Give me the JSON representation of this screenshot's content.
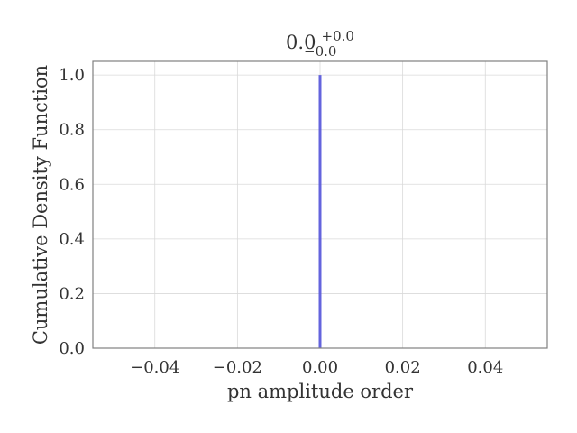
{
  "chart_data": {
    "type": "line",
    "title": {
      "base": "0.0",
      "sup": "+0.0",
      "sub": "−0.0"
    },
    "xlabel": "pn amplitude order",
    "ylabel": "Cumulative Density Function",
    "xlim": [
      -0.055,
      0.055
    ],
    "ylim": [
      0.0,
      1.05
    ],
    "x_ticks": [
      -0.04,
      -0.02,
      0.0,
      0.02,
      0.04
    ],
    "x_tick_labels": [
      "−0.04",
      "−0.02",
      "0.00",
      "0.02",
      "0.04"
    ],
    "y_ticks": [
      0.0,
      0.2,
      0.4,
      0.6,
      0.8,
      1.0
    ],
    "y_tick_labels": [
      "0.0",
      "0.2",
      "0.4",
      "0.6",
      "0.8",
      "1.0"
    ],
    "grid": true,
    "series": [
      {
        "color": "#4b4bd9",
        "x": [
          0.0,
          0.0
        ],
        "y": [
          0.0,
          1.0
        ]
      }
    ]
  }
}
